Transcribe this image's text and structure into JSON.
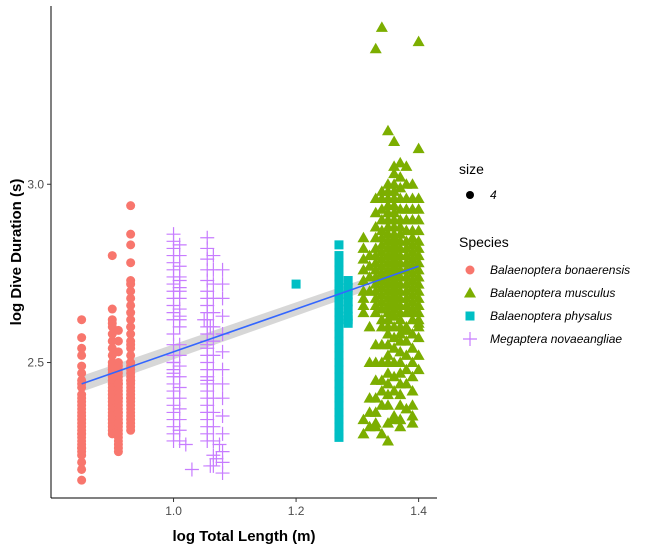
{
  "chart_data": {
    "type": "scatter",
    "xlabel": "log Total Length (m)",
    "ylabel": "log Dive Duration (s)",
    "xlim": [
      0.8,
      1.43
    ],
    "ylim": [
      2.12,
      3.5
    ],
    "x_ticks": [
      1.0,
      1.2,
      1.4
    ],
    "x_tick_labels": [
      "1.0",
      "1.2",
      "1.4"
    ],
    "y_ticks": [
      2.5,
      3.0
    ],
    "y_tick_labels": [
      "2.5",
      "3.0"
    ],
    "grid": false,
    "legend_position": "right",
    "size_legend": {
      "title": "size",
      "label": "4"
    },
    "species_legend_title": "Species",
    "regression": {
      "x": [
        0.85,
        1.4
      ],
      "y": [
        2.44,
        2.77
      ],
      "color": "#3366FF",
      "band_color": "#bdbdbd"
    },
    "series": [
      {
        "name": "Balaenoptera bonaerensis",
        "shape": "circle",
        "color": "#F8766D",
        "x": [
          0.85,
          0.85,
          0.85,
          0.85,
          0.85,
          0.85,
          0.85,
          0.85,
          0.85,
          0.85,
          0.85,
          0.85,
          0.85,
          0.85,
          0.85,
          0.85,
          0.85,
          0.85,
          0.85,
          0.85,
          0.85,
          0.85,
          0.85,
          0.85,
          0.85,
          0.85,
          0.85,
          0.85,
          0.85,
          0.85,
          0.85,
          0.85,
          0.9,
          0.9,
          0.9,
          0.9,
          0.9,
          0.9,
          0.9,
          0.9,
          0.9,
          0.9,
          0.9,
          0.9,
          0.9,
          0.9,
          0.9,
          0.9,
          0.9,
          0.9,
          0.9,
          0.9,
          0.9,
          0.9,
          0.9,
          0.9,
          0.9,
          0.9,
          0.9,
          0.9,
          0.9,
          0.9,
          0.91,
          0.91,
          0.91,
          0.91,
          0.91,
          0.91,
          0.91,
          0.91,
          0.91,
          0.91,
          0.91,
          0.91,
          0.91,
          0.91,
          0.91,
          0.91,
          0.91,
          0.91,
          0.91,
          0.91,
          0.91,
          0.91,
          0.91,
          0.91,
          0.91,
          0.91,
          0.91,
          0.91,
          0.91,
          0.91,
          0.91,
          0.91,
          0.91,
          0.93,
          0.93,
          0.93,
          0.93,
          0.93,
          0.93,
          0.93,
          0.93,
          0.93,
          0.93,
          0.93,
          0.93,
          0.93,
          0.93,
          0.93,
          0.93,
          0.93,
          0.93,
          0.93,
          0.93,
          0.93,
          0.93,
          0.93,
          0.93,
          0.93,
          0.93,
          0.93,
          0.93,
          0.93,
          0.93,
          0.93,
          0.93,
          0.93,
          0.93,
          0.93,
          0.93,
          0.93,
          0.93,
          0.93,
          0.93,
          0.93
        ],
        "y": [
          2.62,
          2.57,
          2.52,
          2.49,
          2.47,
          2.45,
          2.43,
          2.41,
          2.39,
          2.37,
          2.36,
          2.35,
          2.34,
          2.33,
          2.32,
          2.31,
          2.3,
          2.29,
          2.28,
          2.27,
          2.26,
          2.25,
          2.24,
          2.22,
          2.2,
          2.17,
          2.54,
          2.44,
          2.4,
          2.38,
          2.3,
          2.26,
          2.8,
          2.65,
          2.62,
          2.61,
          2.6,
          2.58,
          2.56,
          2.54,
          2.52,
          2.5,
          2.49,
          2.48,
          2.47,
          2.46,
          2.45,
          2.44,
          2.43,
          2.42,
          2.41,
          2.4,
          2.39,
          2.38,
          2.37,
          2.36,
          2.35,
          2.34,
          2.33,
          2.32,
          2.31,
          2.3,
          2.59,
          2.56,
          2.53,
          2.5,
          2.48,
          2.46,
          2.45,
          2.44,
          2.43,
          2.42,
          2.41,
          2.4,
          2.39,
          2.38,
          2.37,
          2.36,
          2.35,
          2.34,
          2.33,
          2.32,
          2.31,
          2.3,
          2.29,
          2.28,
          2.27,
          2.26,
          2.25,
          2.49,
          2.47,
          2.44,
          2.4,
          2.36,
          2.33,
          2.94,
          2.86,
          2.83,
          2.78,
          2.73,
          2.72,
          2.7,
          2.68,
          2.66,
          2.64,
          2.62,
          2.6,
          2.58,
          2.56,
          2.54,
          2.52,
          2.5,
          2.49,
          2.48,
          2.47,
          2.46,
          2.45,
          2.44,
          2.43,
          2.42,
          2.41,
          2.4,
          2.39,
          2.38,
          2.37,
          2.36,
          2.35,
          2.34,
          2.33,
          2.32,
          2.31,
          2.6,
          2.55,
          2.5,
          2.45,
          2.4
        ]
      },
      {
        "name": "Balaenoptera musculus",
        "shape": "triangle",
        "color": "#7CAE00",
        "x": [
          1.34,
          1.35,
          1.36,
          1.37,
          1.38,
          1.39,
          1.4,
          1.34,
          1.33,
          1.36,
          1.4,
          1.34,
          1.35,
          1.37,
          1.39,
          1.36,
          1.31,
          1.31,
          1.31,
          1.31,
          1.31,
          1.31,
          1.31,
          1.31,
          1.31,
          1.31,
          1.32,
          1.32,
          1.32,
          1.32,
          1.32,
          1.32,
          1.32,
          1.32,
          1.33,
          1.33,
          1.33,
          1.33,
          1.33,
          1.33,
          1.33,
          1.33,
          1.33,
          1.33,
          1.33,
          1.33,
          1.33,
          1.33,
          1.33,
          1.33,
          1.33,
          1.33,
          1.33,
          1.33,
          1.34,
          1.34,
          1.34,
          1.34,
          1.34,
          1.34,
          1.34,
          1.34,
          1.34,
          1.34,
          1.34,
          1.34,
          1.34,
          1.34,
          1.34,
          1.34,
          1.34,
          1.34,
          1.34,
          1.34,
          1.34,
          1.34,
          1.35,
          1.35,
          1.35,
          1.35,
          1.35,
          1.35,
          1.35,
          1.35,
          1.35,
          1.35,
          1.35,
          1.35,
          1.35,
          1.35,
          1.35,
          1.35,
          1.35,
          1.35,
          1.35,
          1.35,
          1.35,
          1.35,
          1.35,
          1.35,
          1.35,
          1.35,
          1.35,
          1.35,
          1.35,
          1.35,
          1.36,
          1.36,
          1.36,
          1.36,
          1.36,
          1.36,
          1.36,
          1.36,
          1.36,
          1.36,
          1.36,
          1.36,
          1.36,
          1.36,
          1.36,
          1.36,
          1.36,
          1.36,
          1.36,
          1.36,
          1.36,
          1.36,
          1.36,
          1.36,
          1.36,
          1.36,
          1.36,
          1.36,
          1.36,
          1.36,
          1.36,
          1.36,
          1.36,
          1.36,
          1.36,
          1.36,
          1.36,
          1.36,
          1.37,
          1.37,
          1.37,
          1.37,
          1.37,
          1.37,
          1.37,
          1.37,
          1.37,
          1.37,
          1.37,
          1.37,
          1.37,
          1.37,
          1.37,
          1.37,
          1.37,
          1.37,
          1.37,
          1.37,
          1.37,
          1.37,
          1.37,
          1.37,
          1.37,
          1.37,
          1.37,
          1.37,
          1.37,
          1.37,
          1.38,
          1.38,
          1.38,
          1.38,
          1.38,
          1.38,
          1.38,
          1.38,
          1.38,
          1.38,
          1.38,
          1.38,
          1.38,
          1.38,
          1.38,
          1.38,
          1.38,
          1.38,
          1.38,
          1.38,
          1.38,
          1.38,
          1.39,
          1.39,
          1.39,
          1.39,
          1.39,
          1.39,
          1.39,
          1.39,
          1.39,
          1.39,
          1.39,
          1.39,
          1.39,
          1.39,
          1.39,
          1.39,
          1.39,
          1.39,
          1.39,
          1.39,
          1.39,
          1.39,
          1.39,
          1.4,
          1.4,
          1.4,
          1.4,
          1.4,
          1.4,
          1.4,
          1.4,
          1.4,
          1.4,
          1.4,
          1.4,
          1.4,
          1.4,
          1.4,
          1.4,
          1.4,
          1.4,
          1.4,
          1.4,
          1.4,
          1.31,
          1.33,
          1.35,
          1.37,
          1.39,
          1.32,
          1.36,
          1.38
        ],
        "y": [
          2.62,
          2.6,
          2.63,
          2.58,
          2.59,
          2.64,
          2.61,
          3.44,
          3.38,
          3.12,
          3.4,
          2.3,
          2.28,
          2.32,
          2.35,
          2.34,
          2.85,
          2.82,
          2.79,
          2.76,
          2.73,
          2.7,
          2.68,
          2.66,
          2.64,
          2.3,
          2.8,
          2.77,
          2.74,
          2.7,
          2.6,
          2.5,
          2.4,
          2.32,
          2.96,
          2.92,
          2.88,
          2.85,
          2.82,
          2.8,
          2.78,
          2.76,
          2.74,
          2.72,
          2.7,
          2.68,
          2.66,
          2.64,
          2.55,
          2.5,
          2.45,
          2.4,
          2.36,
          2.32,
          2.98,
          2.96,
          2.93,
          2.9,
          2.87,
          2.85,
          2.83,
          2.81,
          2.79,
          2.77,
          2.75,
          2.73,
          2.71,
          2.69,
          2.67,
          2.65,
          2.6,
          2.55,
          2.5,
          2.45,
          2.42,
          2.38,
          3.15,
          3.0,
          2.98,
          2.96,
          2.94,
          2.92,
          2.9,
          2.88,
          2.86,
          2.84,
          2.82,
          2.8,
          2.78,
          2.76,
          2.74,
          2.72,
          2.7,
          2.68,
          2.66,
          2.64,
          2.62,
          2.6,
          2.58,
          2.55,
          2.52,
          2.5,
          2.47,
          2.44,
          2.41,
          2.38,
          3.05,
          3.03,
          3.0,
          2.98,
          2.96,
          2.94,
          2.92,
          2.9,
          2.88,
          2.86,
          2.85,
          2.84,
          2.83,
          2.82,
          2.81,
          2.8,
          2.79,
          2.78,
          2.77,
          2.76,
          2.75,
          2.74,
          2.73,
          2.72,
          2.71,
          2.7,
          2.69,
          2.68,
          2.67,
          2.66,
          2.65,
          2.63,
          2.6,
          2.57,
          2.54,
          2.5,
          2.46,
          2.42,
          3.06,
          3.02,
          2.99,
          2.96,
          2.93,
          2.9,
          2.88,
          2.86,
          2.84,
          2.82,
          2.8,
          2.78,
          2.76,
          2.74,
          2.72,
          2.7,
          2.68,
          2.66,
          2.64,
          2.62,
          2.6,
          2.58,
          2.56,
          2.53,
          2.5,
          2.47,
          2.44,
          2.41,
          2.38,
          2.34,
          3.05,
          3.0,
          2.96,
          2.93,
          2.9,
          2.87,
          2.84,
          2.82,
          2.8,
          2.78,
          2.76,
          2.74,
          2.72,
          2.7,
          2.68,
          2.66,
          2.64,
          2.6,
          2.56,
          2.52,
          2.48,
          2.44,
          3.0,
          2.96,
          2.93,
          2.9,
          2.87,
          2.85,
          2.83,
          2.81,
          2.79,
          2.77,
          2.75,
          2.73,
          2.71,
          2.69,
          2.67,
          2.65,
          2.62,
          2.58,
          2.54,
          2.5,
          2.46,
          2.42,
          2.38,
          3.1,
          2.96,
          2.93,
          2.9,
          2.87,
          2.84,
          2.82,
          2.8,
          2.78,
          2.76,
          2.74,
          2.72,
          2.7,
          2.68,
          2.66,
          2.64,
          2.62,
          2.6,
          2.57,
          2.52,
          2.48,
          2.34,
          2.33,
          2.33,
          2.34,
          2.33,
          2.36,
          2.35,
          2.37
        ]
      },
      {
        "name": "Balaenoptera physalus",
        "shape": "square",
        "color": "#00BFC4",
        "x": [
          1.2,
          1.27,
          1.27,
          1.27,
          1.27,
          1.27,
          1.27,
          1.27,
          1.27,
          1.27,
          1.27,
          1.27,
          1.27,
          1.27,
          1.27,
          1.27,
          1.27,
          1.27,
          1.27,
          1.27,
          1.27,
          1.27,
          1.27,
          1.27,
          1.27,
          1.27,
          1.27,
          1.27,
          1.27,
          1.285,
          1.285,
          1.285,
          1.285,
          1.285,
          1.285,
          1.285,
          1.285
        ],
        "y": [
          2.72,
          2.83,
          2.8,
          2.78,
          2.76,
          2.74,
          2.72,
          2.7,
          2.68,
          2.66,
          2.64,
          2.62,
          2.6,
          2.58,
          2.56,
          2.54,
          2.52,
          2.5,
          2.48,
          2.46,
          2.44,
          2.42,
          2.4,
          2.38,
          2.36,
          2.34,
          2.32,
          2.3,
          2.29,
          2.73,
          2.71,
          2.69,
          2.67,
          2.65,
          2.63,
          2.61,
          2.62
        ]
      },
      {
        "name": "Megaptera novaeangliae",
        "shape": "plus",
        "color": "#C77CFF",
        "x": [
          1.0,
          1.0,
          1.0,
          1.0,
          1.0,
          1.0,
          1.0,
          1.0,
          1.0,
          1.0,
          1.0,
          1.0,
          1.0,
          1.0,
          1.0,
          1.0,
          1.0,
          1.0,
          1.0,
          1.0,
          1.0,
          1.0,
          1.0,
          1.0,
          1.0,
          1.0,
          1.0,
          1.0,
          1.0,
          1.0,
          1.01,
          1.01,
          1.01,
          1.01,
          1.01,
          1.01,
          1.01,
          1.01,
          1.01,
          1.01,
          1.01,
          1.01,
          1.01,
          1.01,
          1.01,
          1.01,
          1.01,
          1.01,
          1.01,
          1.01,
          1.01,
          1.01,
          1.02,
          1.03,
          1.055,
          1.055,
          1.055,
          1.055,
          1.055,
          1.055,
          1.055,
          1.055,
          1.055,
          1.055,
          1.055,
          1.055,
          1.055,
          1.055,
          1.055,
          1.055,
          1.055,
          1.055,
          1.055,
          1.055,
          1.055,
          1.055,
          1.055,
          1.055,
          1.055,
          1.055,
          1.055,
          1.055,
          1.055,
          1.055,
          1.065,
          1.065,
          1.065,
          1.065,
          1.065,
          1.065,
          1.065,
          1.065,
          1.065,
          1.065,
          1.065,
          1.065,
          1.065,
          1.065,
          1.065,
          1.065,
          1.08,
          1.08,
          1.08,
          1.08,
          1.08,
          1.08,
          1.08,
          1.08,
          1.08,
          1.08,
          1.08,
          1.08,
          1.08,
          1.08,
          1.06,
          1.07,
          1.075,
          1.06,
          1.05
        ],
        "y": [
          2.86,
          2.84,
          2.82,
          2.8,
          2.78,
          2.76,
          2.74,
          2.72,
          2.7,
          2.68,
          2.66,
          2.64,
          2.62,
          2.58,
          2.55,
          2.52,
          2.5,
          2.48,
          2.46,
          2.44,
          2.42,
          2.4,
          2.38,
          2.36,
          2.34,
          2.32,
          2.3,
          2.28,
          2.5,
          2.47,
          2.83,
          2.8,
          2.77,
          2.74,
          2.71,
          2.68,
          2.65,
          2.62,
          2.55,
          2.52,
          2.49,
          2.46,
          2.43,
          2.4,
          2.37,
          2.34,
          2.31,
          2.28,
          2.73,
          2.7,
          2.63,
          2.6,
          2.27,
          2.2,
          2.85,
          2.82,
          2.79,
          2.76,
          2.73,
          2.7,
          2.68,
          2.66,
          2.64,
          2.62,
          2.6,
          2.58,
          2.56,
          2.54,
          2.52,
          2.5,
          2.48,
          2.46,
          2.44,
          2.42,
          2.4,
          2.38,
          2.36,
          2.34,
          2.32,
          2.3,
          2.28,
          2.36,
          2.45,
          2.55,
          2.8,
          2.76,
          2.72,
          2.68,
          2.64,
          2.6,
          2.56,
          2.52,
          2.48,
          2.44,
          2.4,
          2.36,
          2.32,
          2.28,
          2.24,
          2.21,
          2.76,
          2.72,
          2.68,
          2.63,
          2.58,
          2.53,
          2.48,
          2.44,
          2.4,
          2.35,
          2.3,
          2.25,
          2.22,
          2.19,
          2.21,
          2.23,
          2.27,
          2.6,
          2.62
        ]
      }
    ]
  }
}
